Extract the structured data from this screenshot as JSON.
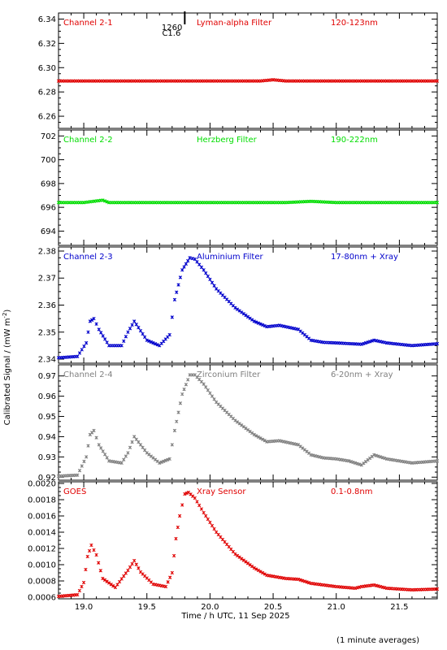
{
  "figure": {
    "ylabel_main": "Calibrated Signal / (mW m",
    "ylabel_sup": "-2",
    "ylabel_end": ")",
    "xlabel": "Time / h UTC, 11 Sep 2025",
    "footnote": "(1 minute averages)",
    "flare_marker": {
      "x": 19.8,
      "label_top": "1260",
      "label_bottom": "C1.6"
    }
  },
  "chart_data": [
    {
      "type": "scatter",
      "labels": [
        "Channel 2-1",
        "Lyman-alpha Filter",
        "120-123nm"
      ],
      "color": "#e00000",
      "ylim": [
        6.25,
        6.345
      ],
      "yticks": [
        6.26,
        6.28,
        6.3,
        6.32,
        6.34
      ],
      "ytick_labels": [
        "6.26",
        "6.28",
        "6.30",
        "6.32",
        "6.34"
      ],
      "xlim": [
        18.8,
        21.8
      ],
      "x": [
        18.8,
        19.0,
        19.2,
        19.4,
        19.6,
        19.8,
        20.0,
        20.2,
        20.4,
        20.5,
        20.6,
        20.8,
        21.0,
        21.2,
        21.4,
        21.6,
        21.8
      ],
      "y": [
        6.289,
        6.289,
        6.289,
        6.289,
        6.289,
        6.289,
        6.289,
        6.289,
        6.289,
        6.29,
        6.289,
        6.289,
        6.289,
        6.289,
        6.289,
        6.289,
        6.289
      ]
    },
    {
      "type": "scatter",
      "labels": [
        "Channel 2-2",
        "Herzberg Filter",
        "190-222nm"
      ],
      "color": "#00dd00",
      "ylim": [
        692.8,
        702.5
      ],
      "yticks": [
        694,
        696,
        698,
        700,
        702
      ],
      "ytick_labels": [
        "694",
        "696",
        "698",
        "700",
        "702"
      ],
      "xlim": [
        18.8,
        21.8
      ],
      "x": [
        18.8,
        19.0,
        19.15,
        19.2,
        19.4,
        19.6,
        19.8,
        20.0,
        20.2,
        20.4,
        20.6,
        20.8,
        21.0,
        21.2,
        21.4,
        21.6,
        21.8
      ],
      "y": [
        696.4,
        696.4,
        696.6,
        696.4,
        696.4,
        696.4,
        696.4,
        696.4,
        696.4,
        696.4,
        696.4,
        696.5,
        696.4,
        696.4,
        696.4,
        696.4,
        696.4
      ]
    },
    {
      "type": "scatter",
      "labels": [
        "Channel 2-3",
        "Aluminium Filter",
        "17-80nm + Xray"
      ],
      "color": "#0000cc",
      "ylim": [
        2.3385,
        2.3815
      ],
      "yticks": [
        2.34,
        2.35,
        2.36,
        2.37,
        2.38
      ],
      "ytick_labels": [
        "2.34",
        "2.35",
        "2.36",
        "2.37",
        "2.38"
      ],
      "xlim": [
        18.8,
        21.8
      ],
      "x": [
        18.8,
        18.95,
        19.02,
        19.05,
        19.08,
        19.12,
        19.2,
        19.3,
        19.35,
        19.4,
        19.45,
        19.5,
        19.6,
        19.68,
        19.72,
        19.78,
        19.84,
        19.88,
        19.95,
        20.05,
        20.2,
        20.35,
        20.45,
        20.55,
        20.7,
        20.8,
        20.9,
        21.0,
        21.2,
        21.3,
        21.4,
        21.6,
        21.8
      ],
      "y": [
        2.3405,
        2.341,
        2.346,
        2.354,
        2.355,
        2.351,
        2.345,
        2.345,
        2.35,
        2.354,
        2.3505,
        2.347,
        2.345,
        2.349,
        2.362,
        2.373,
        2.3775,
        2.377,
        2.373,
        2.366,
        2.359,
        2.354,
        2.352,
        2.3525,
        2.351,
        2.347,
        2.3462,
        2.346,
        2.3455,
        2.347,
        2.346,
        2.345,
        2.3457
      ]
    },
    {
      "type": "scatter",
      "labels": [
        "Channel 2-4",
        "Zirconium Filter",
        "6-20nm + Xray"
      ],
      "color": "#808080",
      "ylim": [
        0.9185,
        0.9755
      ],
      "yticks": [
        0.92,
        0.93,
        0.94,
        0.95,
        0.96,
        0.97
      ],
      "ytick_labels": [
        "0.92",
        "0.93",
        "0.94",
        "0.95",
        "0.96",
        "0.97"
      ],
      "xlim": [
        18.8,
        21.8
      ],
      "x": [
        18.8,
        18.95,
        19.02,
        19.05,
        19.08,
        19.12,
        19.2,
        19.3,
        19.35,
        19.4,
        19.45,
        19.5,
        19.6,
        19.68,
        19.72,
        19.78,
        19.84,
        19.88,
        19.95,
        20.05,
        20.2,
        20.35,
        20.45,
        20.55,
        20.7,
        20.8,
        20.9,
        21.0,
        21.1,
        21.2,
        21.3,
        21.4,
        21.6,
        21.8
      ],
      "y": [
        0.9205,
        0.921,
        0.93,
        0.941,
        0.943,
        0.936,
        0.928,
        0.927,
        0.932,
        0.94,
        0.936,
        0.932,
        0.927,
        0.929,
        0.943,
        0.961,
        0.9705,
        0.9705,
        0.966,
        0.957,
        0.948,
        0.941,
        0.9375,
        0.938,
        0.936,
        0.931,
        0.9295,
        0.929,
        0.928,
        0.926,
        0.931,
        0.929,
        0.927,
        0.928
      ]
    },
    {
      "type": "scatter",
      "labels": [
        "GOES",
        "Xray Sensor",
        "0.1-0.8nm"
      ],
      "color": "#e00000",
      "ylim": [
        0.00058,
        0.00202
      ],
      "yticks": [
        0.0006,
        0.0008,
        0.001,
        0.0012,
        0.0014,
        0.0016,
        0.0018,
        0.002
      ],
      "ytick_labels": [
        "0.0006",
        "0.0008",
        "0.0010",
        "0.0012",
        "0.0014",
        "0.0016",
        "0.0018",
        "0.0020"
      ],
      "xlim": [
        18.8,
        21.8
      ],
      "x": [
        18.8,
        18.95,
        19.0,
        19.03,
        19.06,
        19.1,
        19.15,
        19.25,
        19.35,
        19.4,
        19.45,
        19.55,
        19.65,
        19.7,
        19.73,
        19.76,
        19.8,
        19.83,
        19.88,
        19.95,
        20.05,
        20.2,
        20.35,
        20.45,
        20.6,
        20.7,
        20.8,
        21.0,
        21.15,
        21.2,
        21.3,
        21.4,
        21.6,
        21.8
      ],
      "y": [
        0.00061,
        0.00063,
        0.00078,
        0.0011,
        0.00124,
        0.00112,
        0.00083,
        0.00072,
        0.00093,
        0.00105,
        0.00091,
        0.00076,
        0.00073,
        0.0009,
        0.00132,
        0.0016,
        0.00187,
        0.00189,
        0.00182,
        0.00164,
        0.0014,
        0.00113,
        0.00096,
        0.00087,
        0.00083,
        0.00082,
        0.00077,
        0.00073,
        0.00071,
        0.00073,
        0.00075,
        0.00071,
        0.00069,
        0.0007
      ]
    }
  ],
  "x_axis": {
    "xlim": [
      18.8,
      21.8
    ],
    "ticks": [
      19.0,
      19.5,
      20.0,
      20.5,
      21.0,
      21.5
    ],
    "tick_labels": [
      "19.0",
      "19.5",
      "20.0",
      "20.5",
      "21.0",
      "21.5"
    ]
  }
}
